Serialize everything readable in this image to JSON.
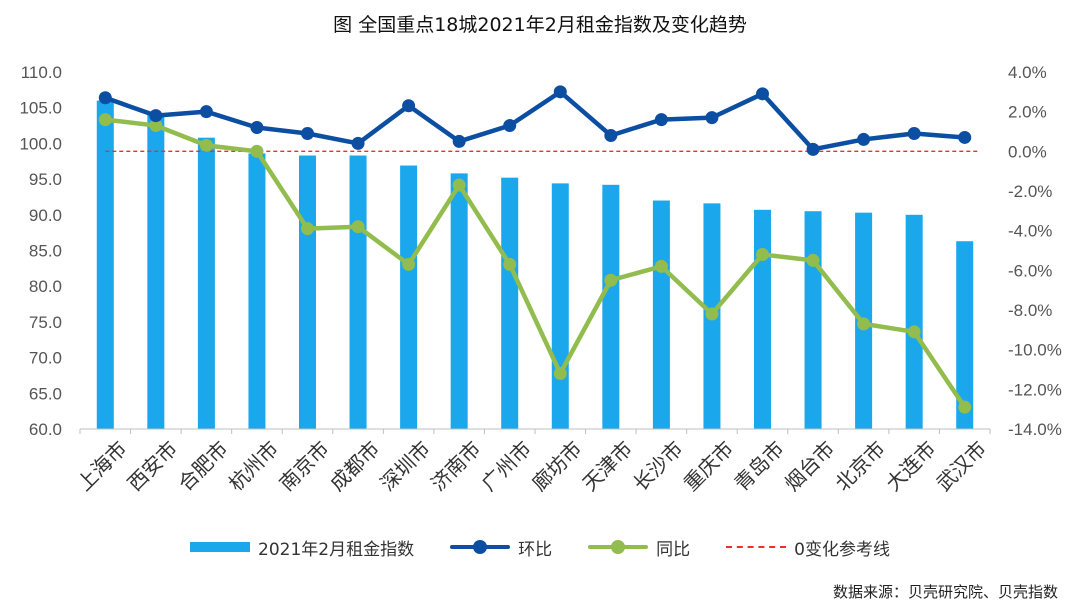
{
  "chart_data": {
    "type": "bar",
    "title": "图 全国重点18城2021年2月租金指数及变化趋势",
    "categories": [
      "上海市",
      "西安市",
      "合肥市",
      "杭州市",
      "南京市",
      "成都市",
      "深圳市",
      "济南市",
      "广州市",
      "廊坊市",
      "天津市",
      "长沙市",
      "重庆市",
      "青岛市",
      "烟台市",
      "北京市",
      "大连市",
      "武汉市"
    ],
    "series": [
      {
        "name": "2021年2月租金指数",
        "type": "bar",
        "axis": "left",
        "color": "#1aa7ec",
        "values": [
          106.0,
          104.0,
          100.8,
          98.6,
          98.3,
          98.3,
          96.9,
          95.8,
          95.2,
          94.4,
          94.2,
          92.0,
          91.6,
          90.7,
          90.5,
          90.3,
          90.0,
          86.3
        ]
      },
      {
        "name": "环比",
        "type": "line",
        "axis": "right",
        "color": "#0b4ea2",
        "values": [
          2.7,
          1.8,
          2.0,
          1.2,
          0.9,
          0.4,
          2.3,
          0.5,
          1.3,
          3.0,
          0.8,
          1.6,
          1.7,
          2.9,
          0.1,
          0.6,
          0.9,
          0.7
        ]
      },
      {
        "name": "同比",
        "type": "line",
        "axis": "right",
        "color": "#92bc4d",
        "values": [
          1.6,
          1.3,
          0.3,
          0.0,
          -3.9,
          -3.8,
          -5.7,
          -1.7,
          -5.7,
          -11.2,
          -6.5,
          -5.8,
          -8.2,
          -5.2,
          -5.5,
          -8.7,
          -9.1,
          -12.9
        ]
      },
      {
        "name": "0变化参考线",
        "type": "reference",
        "axis": "right",
        "color": "#e8312a",
        "value": 0
      }
    ],
    "ylim": [
      60,
      110
    ],
    "y_ticks": [
      "60.0",
      "65.0",
      "70.0",
      "75.0",
      "80.0",
      "85.0",
      "90.0",
      "95.0",
      "100.0",
      "105.0",
      "110.0"
    ],
    "y2lim": [
      -14,
      4
    ],
    "y2_ticks": [
      "-14.0%",
      "-12.0%",
      "-10.0%",
      "-8.0%",
      "-6.0%",
      "-4.0%",
      "-2.0%",
      "0.0%",
      "2.0%",
      "4.0%"
    ],
    "grid": false,
    "legend_position": "bottom"
  },
  "legend": {
    "bar_label": "2021年2月租金指数",
    "mom_label": "环比",
    "yoy_label": "同比",
    "ref_label": "0变化参考线"
  },
  "source": "数据来源：贝壳研究院、贝壳指数"
}
